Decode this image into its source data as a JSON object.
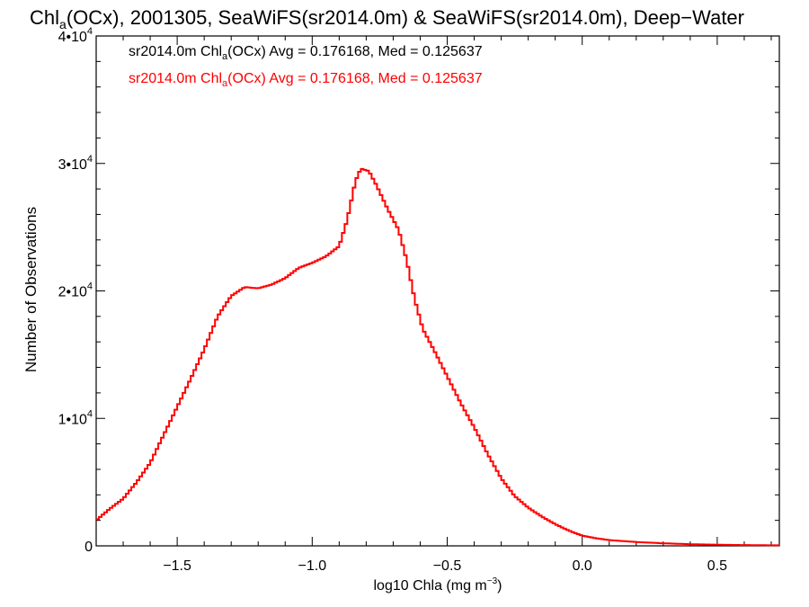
{
  "chart_data": {
    "type": "line",
    "title": {
      "pre": "Chl",
      "sub": "a",
      "post": "(OCx), 2001305, SeaWiFS(sr2014.0m) & SeaWiFS(sr2014.0m), Deep−Water"
    },
    "xlabel": {
      "pre": "log10 Chla (mg m",
      "sup": "−3",
      "post": ")"
    },
    "ylabel": "Number of Observations",
    "xlim": [
      -1.8,
      0.73
    ],
    "ylim": [
      0,
      40000
    ],
    "x_ticks": [
      {
        "value": -1.5,
        "label": "−1.5"
      },
      {
        "value": -1.0,
        "label": "−1.0"
      },
      {
        "value": -0.5,
        "label": "−0.5"
      },
      {
        "value": 0.0,
        "label": "0.0"
      },
      {
        "value": 0.5,
        "label": "0.5"
      }
    ],
    "y_ticks": [
      {
        "value": 0,
        "base": "0",
        "exp": ""
      },
      {
        "value": 10000,
        "base": "1•10",
        "exp": "4"
      },
      {
        "value": 20000,
        "base": "2•10",
        "exp": "4"
      },
      {
        "value": 30000,
        "base": "3•10",
        "exp": "4"
      },
      {
        "value": 40000,
        "base": "4•10",
        "exp": "4"
      }
    ],
    "legend": [
      {
        "pre": "sr2014.0m Chl",
        "sub": "a",
        "post": "(OCx) Avg = 0.176168, Med = 0.125637",
        "color": "#000000"
      },
      {
        "pre": "sr2014.0m Chl",
        "sub": "a",
        "post": "(OCx) Avg = 0.176168, Med = 0.125637",
        "color": "#ff0000"
      }
    ],
    "series": [
      {
        "color": "#ff0000",
        "points": [
          [
            -1.8,
            2000
          ],
          [
            -1.75,
            2900
          ],
          [
            -1.7,
            3700
          ],
          [
            -1.65,
            5000
          ],
          [
            -1.6,
            6500
          ],
          [
            -1.55,
            8700
          ],
          [
            -1.5,
            10900
          ],
          [
            -1.45,
            13100
          ],
          [
            -1.4,
            15400
          ],
          [
            -1.35,
            18000
          ],
          [
            -1.3,
            19600
          ],
          [
            -1.25,
            20300
          ],
          [
            -1.2,
            20200
          ],
          [
            -1.15,
            20500
          ],
          [
            -1.1,
            21000
          ],
          [
            -1.05,
            21800
          ],
          [
            -1.0,
            22200
          ],
          [
            -0.95,
            22700
          ],
          [
            -0.9,
            23500
          ],
          [
            -0.87,
            25600
          ],
          [
            -0.84,
            28600
          ],
          [
            -0.82,
            29600
          ],
          [
            -0.79,
            29400
          ],
          [
            -0.76,
            28200
          ],
          [
            -0.72,
            26400
          ],
          [
            -0.68,
            24800
          ],
          [
            -0.65,
            22400
          ],
          [
            -0.62,
            19300
          ],
          [
            -0.59,
            17000
          ],
          [
            -0.55,
            15400
          ],
          [
            -0.5,
            13300
          ],
          [
            -0.45,
            11200
          ],
          [
            -0.4,
            9300
          ],
          [
            -0.35,
            7200
          ],
          [
            -0.3,
            5300
          ],
          [
            -0.25,
            3900
          ],
          [
            -0.2,
            3000
          ],
          [
            -0.15,
            2300
          ],
          [
            -0.1,
            1700
          ],
          [
            -0.05,
            1200
          ],
          [
            0.0,
            800
          ],
          [
            0.05,
            600
          ],
          [
            0.1,
            450
          ],
          [
            0.2,
            300
          ],
          [
            0.3,
            200
          ],
          [
            0.4,
            130
          ],
          [
            0.5,
            90
          ],
          [
            0.6,
            60
          ],
          [
            0.73,
            40
          ]
        ]
      }
    ]
  }
}
